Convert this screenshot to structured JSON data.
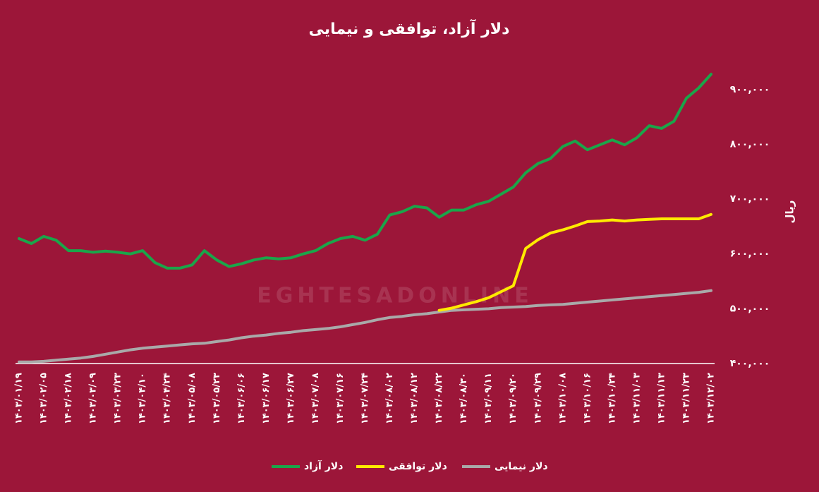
{
  "chart_data": {
    "type": "line",
    "title": "دلار آزاد، توافقی و نیمایی",
    "y_axis_label": "ریال",
    "watermark": "EGHTESADONLINE",
    "categories": [
      "۱۴۰۳/۰۱/۱۹",
      null,
      "۱۴۰۳/۰۲/۰۵",
      null,
      "۱۴۰۳/۰۲/۱۸",
      null,
      "۱۴۰۳/۰۳/۰۹",
      null,
      "۱۴۰۳/۰۳/۲۳",
      null,
      "۱۴۰۳/۰۴/۱۰",
      null,
      "۱۴۰۳/۰۴/۲۴",
      null,
      "۱۴۰۳/۰۵/۰۸",
      null,
      "۱۴۰۳/۰۵/۲۳",
      null,
      "۱۴۰۳/۰۶/۰۶",
      null,
      "۱۴۰۳/۰۶/۱۷",
      null,
      "۱۴۰۳/۰۶/۲۷",
      null,
      "۱۴۰۳/۰۷/۰۸",
      null,
      "۱۴۰۳/۰۷/۱۶",
      null,
      "۱۴۰۳/۰۷/۲۴",
      null,
      "۱۴۰۳/۰۸/۰۲",
      null,
      "۱۴۰۳/۰۸/۱۲",
      null,
      "۱۴۰۳/۰۸/۲۲",
      null,
      "۱۴۰۳/۰۸/۳۰",
      null,
      "۱۴۰۳/۰۹/۱۱",
      null,
      "۱۴۰۳/۰۹/۲۰",
      null,
      "۱۴۰۳/۰۹/۲۹",
      null,
      "۱۴۰۳/۱۰/۰۸",
      null,
      "۱۴۰۳/۱۰/۱۶",
      null,
      "۱۴۰۳/۱۰/۲۴",
      null,
      "۱۴۰۳/۱۱/۰۳",
      null,
      "۱۴۰۳/۱۱/۱۳",
      null,
      "۱۴۰۳/۱۱/۲۳",
      null,
      "۱۴۰۳/۱۲/۰۲"
    ],
    "series": [
      {
        "name": "دلار آزاد",
        "color": "#1aa64a",
        "values": [
          628000,
          619000,
          632000,
          625000,
          606000,
          606000,
          603000,
          605000,
          603000,
          600000,
          606000,
          584000,
          574000,
          574000,
          580000,
          606000,
          589000,
          577000,
          582000,
          589000,
          593000,
          591000,
          593000,
          600000,
          606000,
          619000,
          628000,
          632000,
          625000,
          636000,
          671000,
          677000,
          687000,
          684000,
          667000,
          680000,
          680000,
          690000,
          696000,
          709000,
          722000,
          748000,
          765000,
          774000,
          796000,
          806000,
          790000,
          799000,
          808000,
          799000,
          812000,
          834000,
          829000,
          842000,
          884000,
          903000,
          928000
        ]
      },
      {
        "name": "دلار توافقی",
        "color": "#ffea00",
        "values": [
          null,
          null,
          null,
          null,
          null,
          null,
          null,
          null,
          null,
          null,
          null,
          null,
          null,
          null,
          null,
          null,
          null,
          null,
          null,
          null,
          null,
          null,
          null,
          null,
          null,
          null,
          null,
          null,
          null,
          null,
          null,
          null,
          null,
          null,
          497000,
          501000,
          507000,
          513000,
          520000,
          531000,
          542000,
          610000,
          626000,
          638000,
          644000,
          651000,
          659000,
          660000,
          662000,
          660000,
          662000,
          663000,
          664000,
          664000,
          664000,
          664000,
          672000
        ]
      },
      {
        "name": "دلار نیمایی",
        "color": "#a9a9a9",
        "values": [
          403000,
          403000,
          404000,
          406000,
          408000,
          410000,
          413000,
          417000,
          421000,
          425000,
          428000,
          430000,
          432000,
          434000,
          436000,
          437000,
          440000,
          443000,
          447000,
          450000,
          452000,
          455000,
          457000,
          460000,
          462000,
          464000,
          467000,
          471000,
          475000,
          480000,
          484000,
          486000,
          489000,
          491000,
          494000,
          497000,
          498000,
          499000,
          500000,
          502000,
          503000,
          504000,
          506000,
          507000,
          508000,
          510000,
          512000,
          514000,
          516000,
          518000,
          520000,
          522000,
          524000,
          526000,
          528000,
          530000,
          533000
        ]
      }
    ],
    "ylim": [
      400000,
      950000
    ],
    "yticks": [
      {
        "value": 400000,
        "label": "۴۰۰,۰۰۰"
      },
      {
        "value": 500000,
        "label": "۵۰۰,۰۰۰"
      },
      {
        "value": 600000,
        "label": "۶۰۰,۰۰۰"
      },
      {
        "value": 700000,
        "label": "۷۰۰,۰۰۰"
      },
      {
        "value": 800000,
        "label": "۸۰۰,۰۰۰"
      },
      {
        "value": 900000,
        "label": "۹۰۰,۰۰۰"
      }
    ],
    "grid": false,
    "legend": "bottom"
  }
}
